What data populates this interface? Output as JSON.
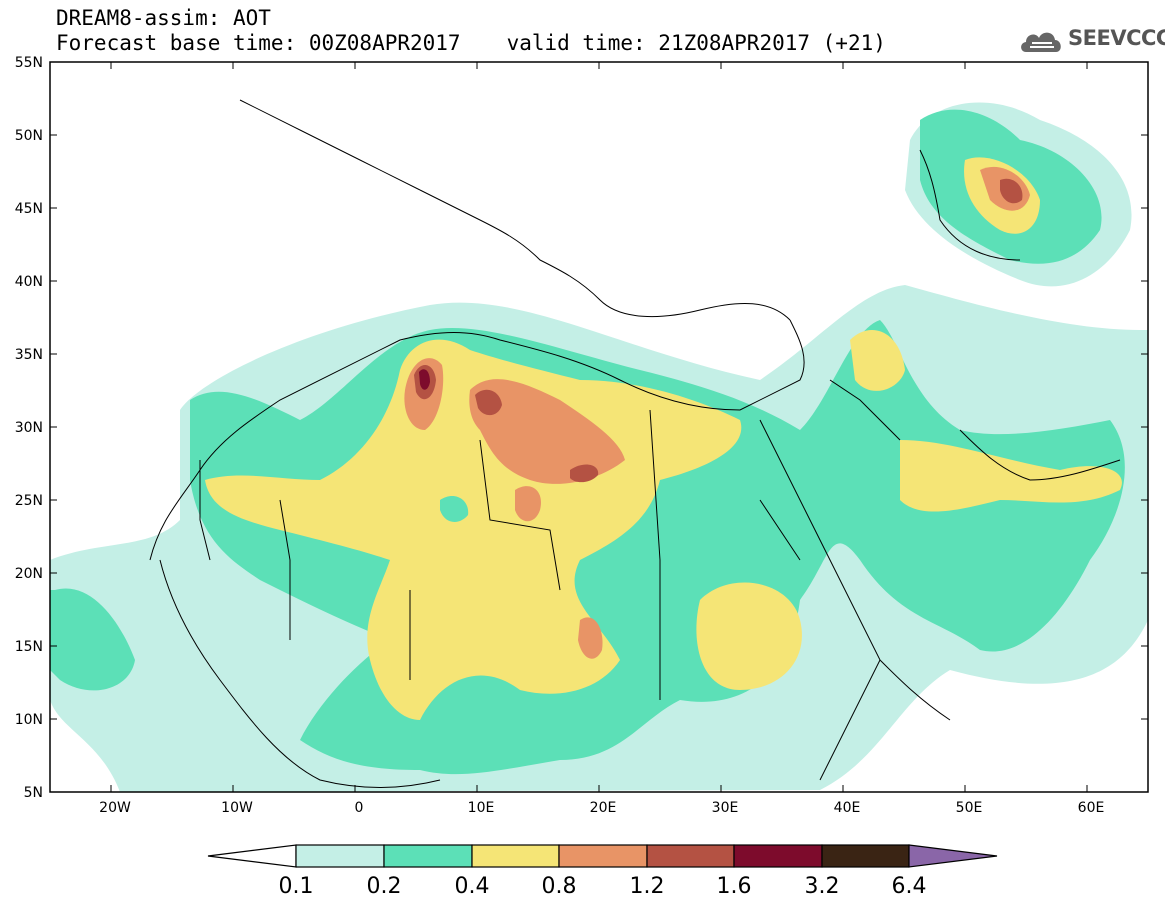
{
  "header": {
    "model_line": "DREAM8-assim: AOT",
    "base_time": "Forecast base time: 00Z08APR2017",
    "valid_time": "valid time: 21Z08APR2017 (+21)"
  },
  "logo": {
    "text": "SEEVCCC",
    "icon": "cloud-icon"
  },
  "axes": {
    "latitudes": [
      "55N",
      "50N",
      "45N",
      "40N",
      "35N",
      "30N",
      "25N",
      "20N",
      "15N",
      "10N",
      "5N"
    ],
    "longitudes": [
      "20W",
      "10W",
      "0",
      "10E",
      "20E",
      "30E",
      "40E",
      "50E",
      "60E"
    ],
    "lat_range": [
      5,
      55
    ],
    "lon_range": [
      -25,
      65
    ]
  },
  "legend": {
    "levels": [
      "0.1",
      "0.2",
      "0.4",
      "0.8",
      "1.2",
      "1.6",
      "3.2",
      "6.4"
    ],
    "colors": [
      "#c4efe6",
      "#5ce0b7",
      "#f5e576",
      "#e89466",
      "#b45243",
      "#7d0b2c",
      "#3a2414",
      "#8a66a8"
    ],
    "under_color": "#ffffff"
  },
  "colors": {
    "c1": "#c4efe6",
    "c2": "#5ce0b7",
    "c3": "#f5e576",
    "c4": "#e89466",
    "c5": "#b45243",
    "c6": "#7d0b2c"
  }
}
